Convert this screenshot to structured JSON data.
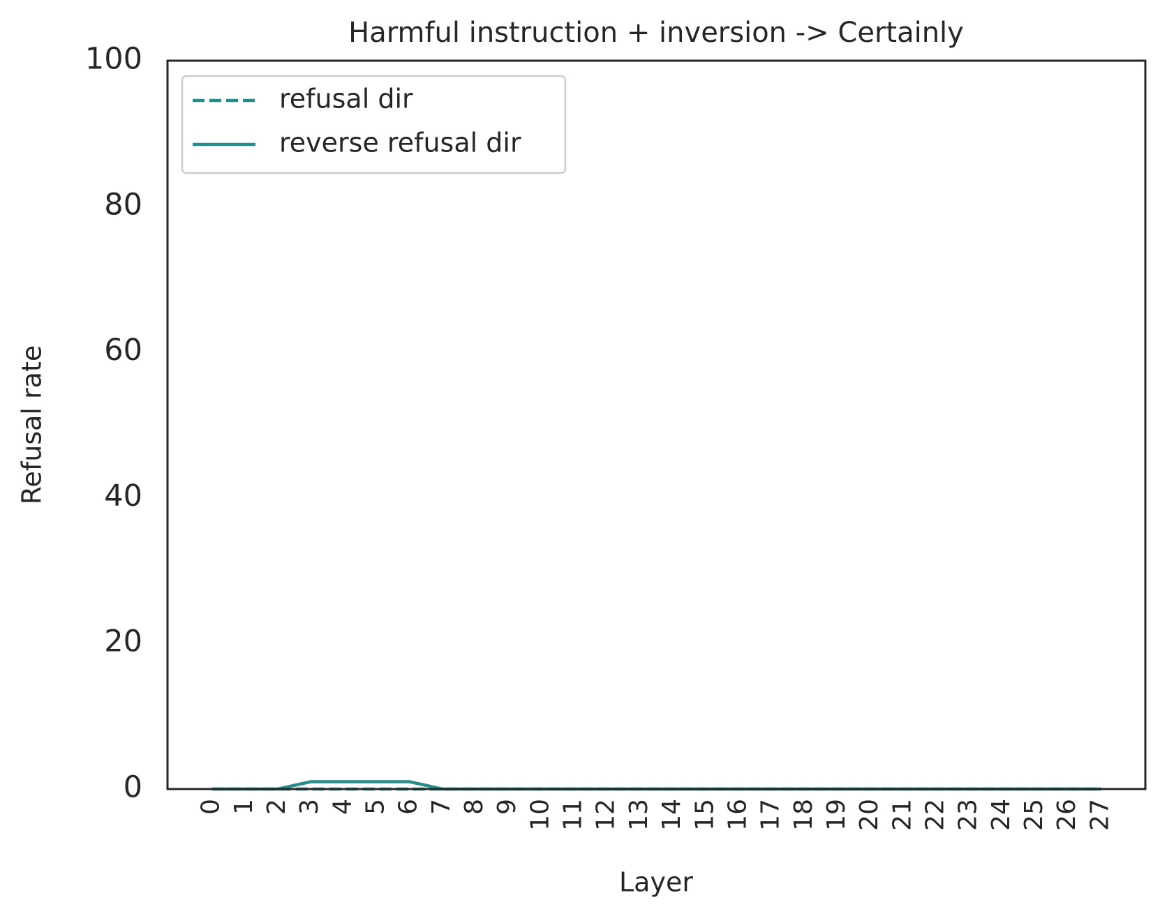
{
  "chart_data": {
    "type": "line",
    "title": "Harmful instruction + inversion -> Certainly",
    "xlabel": "Layer",
    "ylabel": "Refusal rate",
    "x": [
      0,
      1,
      2,
      3,
      4,
      5,
      6,
      7,
      8,
      9,
      10,
      11,
      12,
      13,
      14,
      15,
      16,
      17,
      18,
      19,
      20,
      21,
      22,
      23,
      24,
      25,
      26,
      27
    ],
    "xticks": [
      0,
      1,
      2,
      3,
      4,
      5,
      6,
      7,
      8,
      9,
      10,
      11,
      12,
      13,
      14,
      15,
      16,
      17,
      18,
      19,
      20,
      21,
      22,
      23,
      24,
      25,
      26,
      27
    ],
    "xlim": [
      -1.35,
      28.35
    ],
    "ylim": [
      0,
      100
    ],
    "yticks": [
      0,
      20,
      40,
      60,
      80,
      100
    ],
    "legend": "upper left",
    "series": [
      {
        "name": "refusal dir",
        "color": "#2a8b8a",
        "style": "dashed",
        "values": [
          0,
          0,
          0,
          0,
          0,
          0,
          0,
          0,
          0,
          0,
          0,
          0,
          0,
          0,
          0,
          0,
          0,
          0,
          0,
          0,
          0,
          0,
          0,
          0,
          0,
          0,
          0,
          0
        ]
      },
      {
        "name": "reverse refusal dir",
        "color": "#2a8b8a",
        "style": "solid",
        "values": [
          0,
          0,
          0,
          1,
          1,
          1,
          1,
          0,
          0,
          0,
          0,
          0,
          0,
          0,
          0,
          0,
          0,
          0,
          0,
          0,
          0,
          0,
          0,
          0,
          0,
          0,
          0,
          0
        ]
      }
    ]
  }
}
